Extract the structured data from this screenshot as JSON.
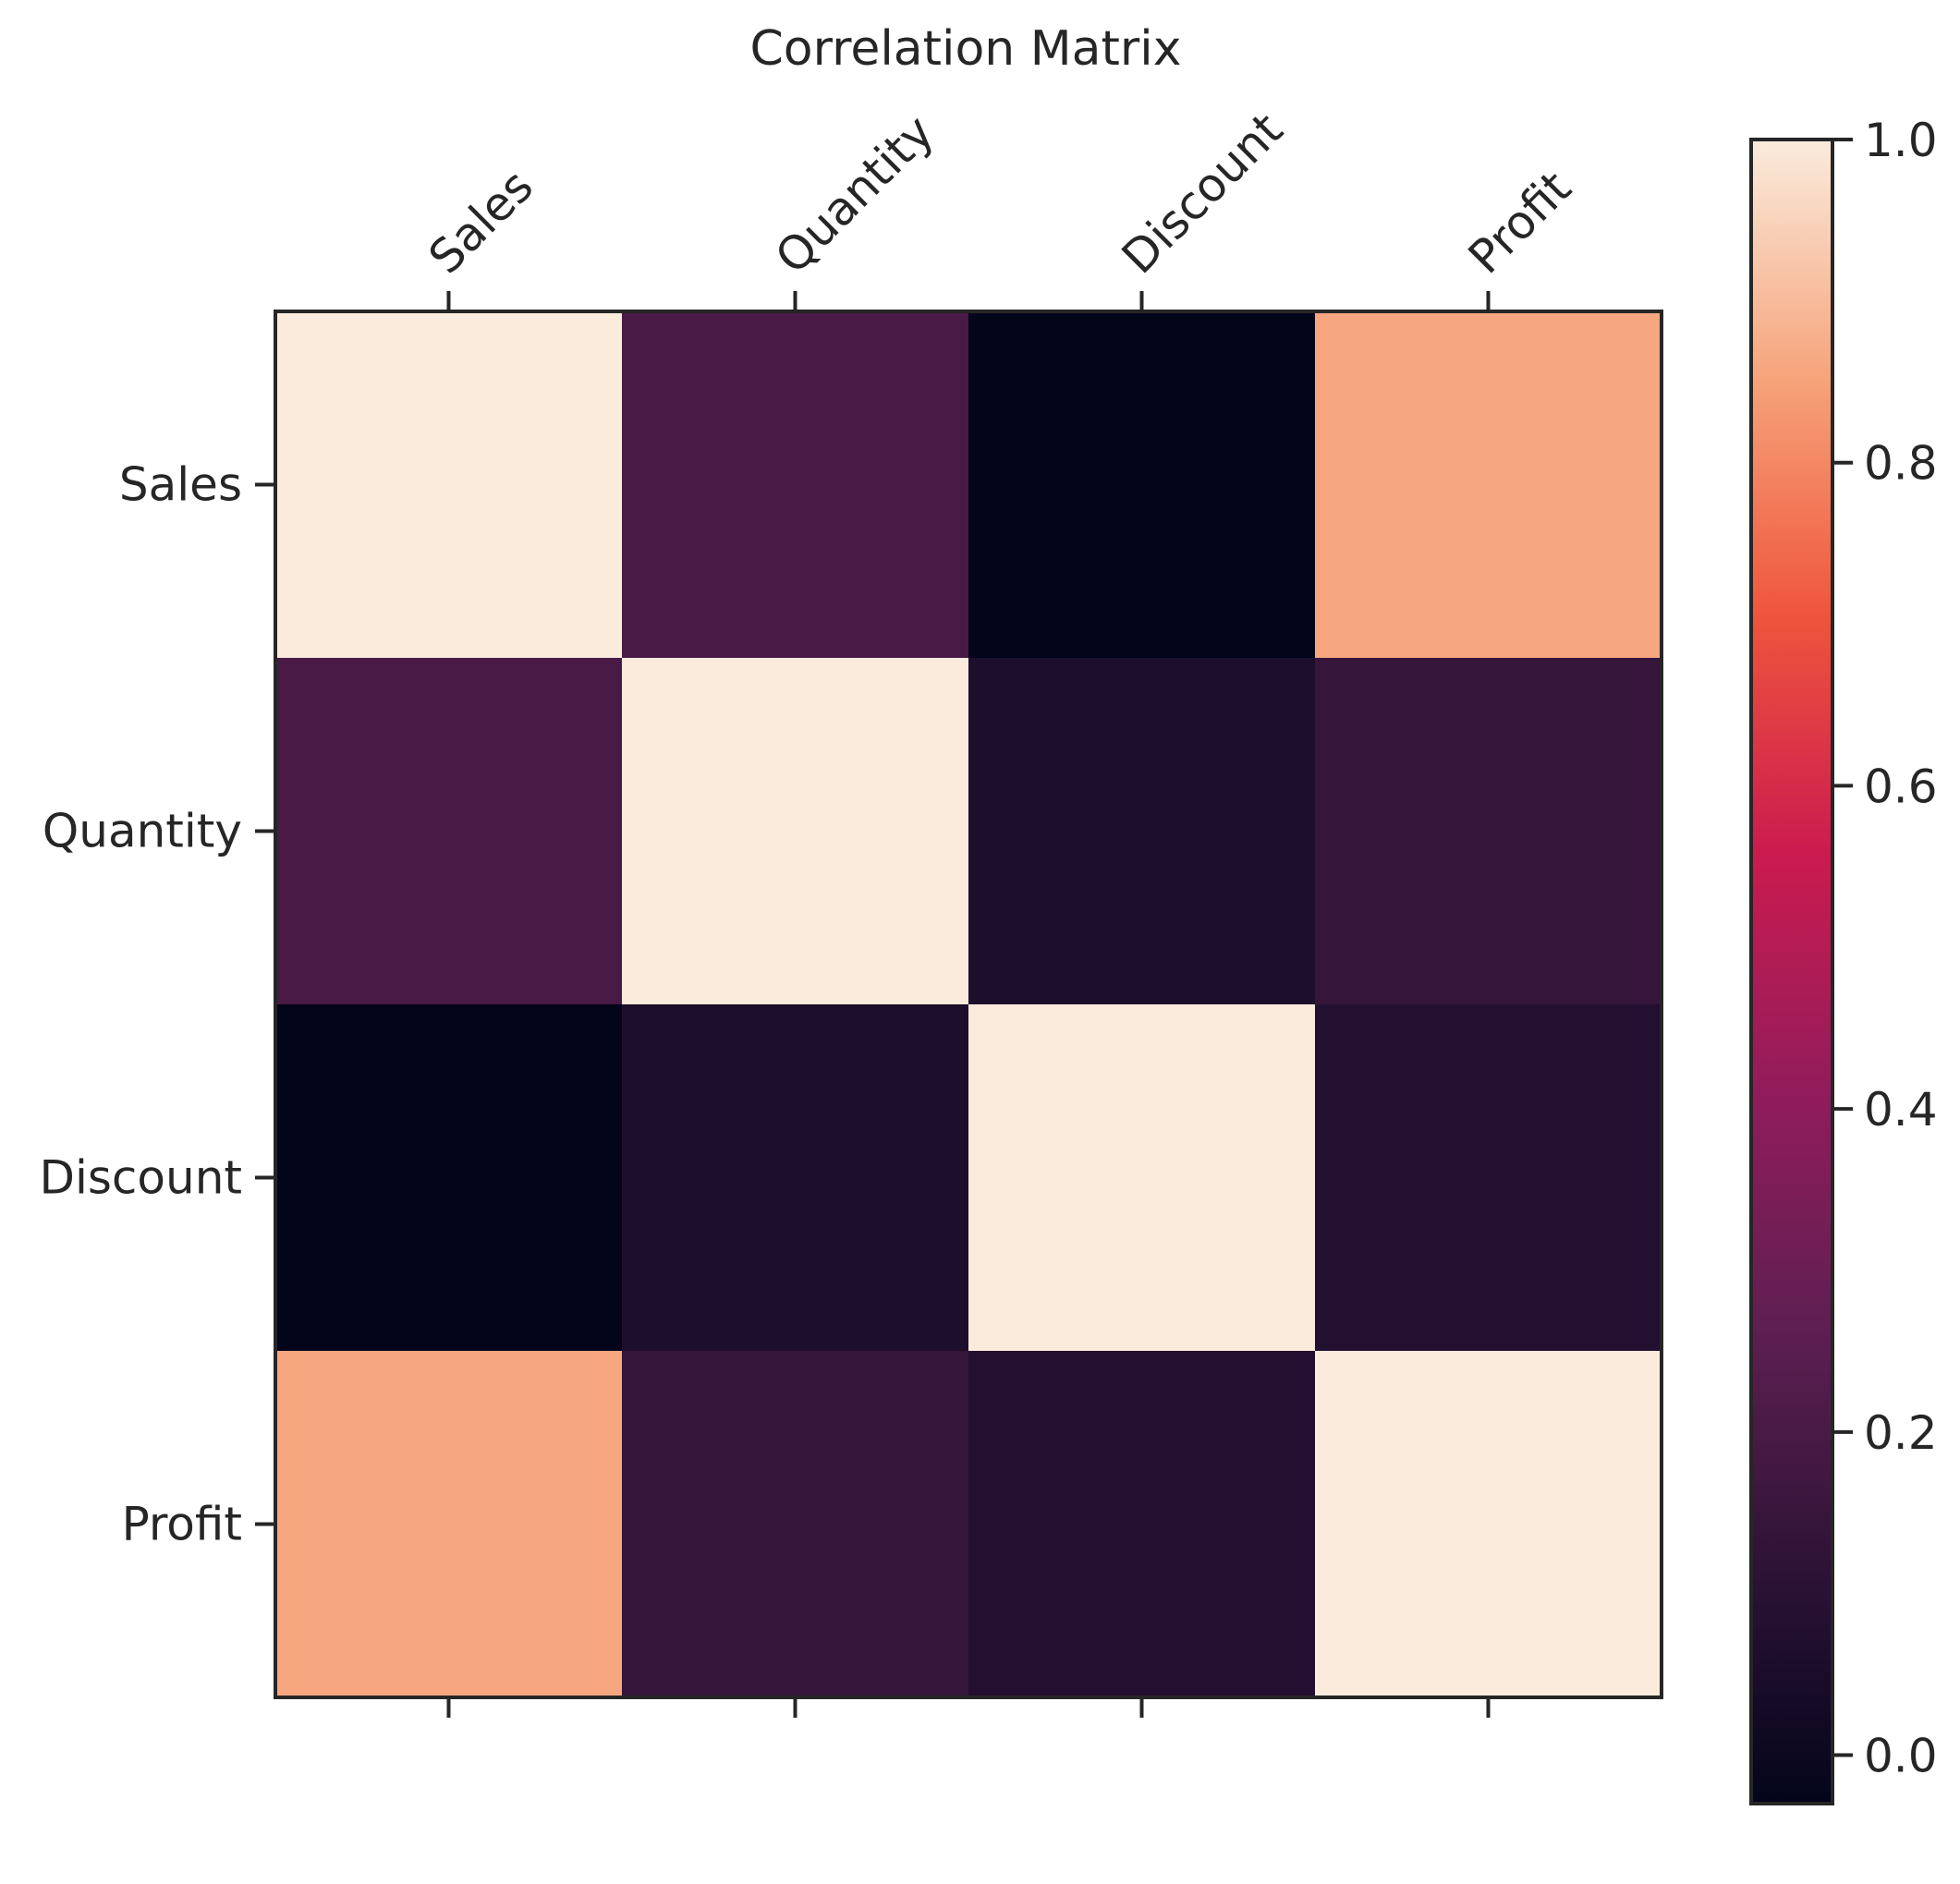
{
  "chart_data": {
    "type": "heatmap",
    "title": "Correlation Matrix",
    "x_labels": [
      "Sales",
      "Quantity",
      "Discount",
      "Profit"
    ],
    "y_labels": [
      "Sales",
      "Quantity",
      "Discount",
      "Profit"
    ],
    "values": [
      [
        1.0,
        0.2,
        -0.03,
        0.86
      ],
      [
        0.2,
        1.0,
        0.06,
        0.14
      ],
      [
        -0.03,
        0.06,
        1.0,
        0.08
      ],
      [
        0.86,
        0.14,
        0.08,
        1.0
      ]
    ],
    "colorbar": {
      "vmin": -0.03,
      "vmax": 1.0,
      "ticks": [
        0.0,
        0.2,
        0.4,
        0.6,
        0.8,
        1.0
      ],
      "tick_labels": [
        "0.0",
        "0.2",
        "0.4",
        "0.6",
        "0.8",
        "1.0"
      ],
      "colormap": "rocket",
      "stops": [
        "#03051A",
        "#2E1336",
        "#5E1F52",
        "#921C5B",
        "#CB1B4F",
        "#EF553C",
        "#F6A47B",
        "#FAEBDD"
      ]
    },
    "grid": false,
    "x_tick_position": "top",
    "x_tick_rotation": 45
  }
}
